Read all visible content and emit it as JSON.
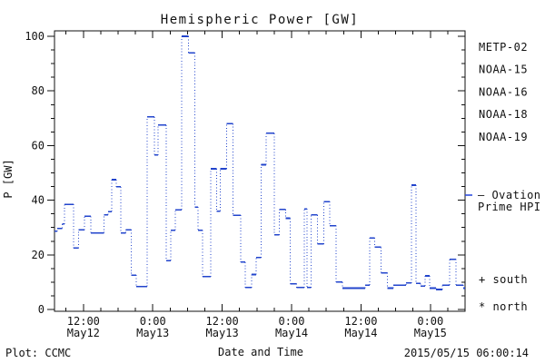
{
  "title": "Hemispheric Power [GW]",
  "footer": {
    "plot_credit": "Plot: CCMC",
    "timestamp": "2015/05/15 06:00:14"
  },
  "legend": {
    "satellites": [
      {
        "label": "METP-02",
        "color": "#111111"
      },
      {
        "label": "NOAA-15",
        "color": "#2244dd"
      },
      {
        "label": "NOAA-16",
        "color": "#44ccee"
      },
      {
        "label": "NOAA-18",
        "color": "#66ee77"
      },
      {
        "label": "NOAA-19",
        "color": "#ffaa33"
      }
    ],
    "model_label_line1": "— Ovation",
    "model_label_line2": "Prime HPI",
    "model_color": "#2244dd",
    "south_label": "+ south",
    "north_label": "* north"
  },
  "chart_data": {
    "type": "line",
    "line_style": "step: solid horizontal segments, dotted vertical connectors",
    "title": "Hemispheric Power [GW]",
    "xlabel": "Date and Time",
    "ylabel": "P [GW]",
    "ylim": [
      0,
      100
    ],
    "y_major_ticks": [
      0,
      20,
      40,
      60,
      80,
      100
    ],
    "y_minor_step": 5,
    "x_start": "2015-05-12 07:00",
    "x_end": "2015-05-15 06:00",
    "duration_hours": 71,
    "x_minor_step_hours": 3,
    "x_ticks": [
      {
        "hour": 5,
        "time": "12:00",
        "date": "May12"
      },
      {
        "hour": 17,
        "time": "0:00",
        "date": "May13"
      },
      {
        "hour": 29,
        "time": "12:00",
        "date": "May13"
      },
      {
        "hour": 41,
        "time": "0:00",
        "date": "May14"
      },
      {
        "hour": 53,
        "time": "12:00",
        "date": "May14"
      },
      {
        "hour": 65,
        "time": "0:00",
        "date": "May15"
      }
    ],
    "grid": false,
    "legend_position": "right",
    "series": [
      {
        "name": "Ovation Prime HPI",
        "color": "#2244cc",
        "points": [
          [
            0,
            28.6
          ],
          [
            0.5,
            29.7
          ],
          [
            1.3,
            31.3
          ],
          [
            1.7,
            38.5
          ],
          [
            3.3,
            22.5
          ],
          [
            4.2,
            29.1
          ],
          [
            5.2,
            34.1
          ],
          [
            6.3,
            28.0
          ],
          [
            8.6,
            34.7
          ],
          [
            9.3,
            35.8
          ],
          [
            9.9,
            47.5
          ],
          [
            10.7,
            44.9
          ],
          [
            11.5,
            28.0
          ],
          [
            12.3,
            29.2
          ],
          [
            13.3,
            12.6
          ],
          [
            14.1,
            8.4
          ],
          [
            16.0,
            70.5
          ],
          [
            17.3,
            56.5
          ],
          [
            17.9,
            67.5
          ],
          [
            19.3,
            17.9
          ],
          [
            20.1,
            29.0
          ],
          [
            20.9,
            36.5
          ],
          [
            22.0,
            100.0
          ],
          [
            23.2,
            94.0
          ],
          [
            24.3,
            37.5
          ],
          [
            24.8,
            29.0
          ],
          [
            25.6,
            12.0
          ],
          [
            27.0,
            51.5
          ],
          [
            28.0,
            36.0
          ],
          [
            28.7,
            51.5
          ],
          [
            29.8,
            68.0
          ],
          [
            30.9,
            34.5
          ],
          [
            32.2,
            17.3
          ],
          [
            33.0,
            8.0
          ],
          [
            34.1,
            12.8
          ],
          [
            34.9,
            19.0
          ],
          [
            35.7,
            53.0
          ],
          [
            36.6,
            64.5
          ],
          [
            38.0,
            27.3
          ],
          [
            38.9,
            36.6
          ],
          [
            40.0,
            33.4
          ],
          [
            40.8,
            9.4
          ],
          [
            41.9,
            8.0
          ],
          [
            43.2,
            36.8
          ],
          [
            43.7,
            8.0
          ],
          [
            44.4,
            34.6
          ],
          [
            45.5,
            24.0
          ],
          [
            46.6,
            39.5
          ],
          [
            47.6,
            30.7
          ],
          [
            48.7,
            10.0
          ],
          [
            49.8,
            7.8
          ],
          [
            53.7,
            8.9
          ],
          [
            54.5,
            26.2
          ],
          [
            55.4,
            22.8
          ],
          [
            56.5,
            13.4
          ],
          [
            57.6,
            7.8
          ],
          [
            58.6,
            8.9
          ],
          [
            60.8,
            9.7
          ],
          [
            61.7,
            45.5
          ],
          [
            62.5,
            9.5
          ],
          [
            63.3,
            8.6
          ],
          [
            64.1,
            12.3
          ],
          [
            64.9,
            7.8
          ],
          [
            66.0,
            7.3
          ],
          [
            67.1,
            8.9
          ],
          [
            68.3,
            18.4
          ],
          [
            69.4,
            8.9
          ],
          [
            70.7,
            7.8
          ]
        ]
      }
    ]
  }
}
